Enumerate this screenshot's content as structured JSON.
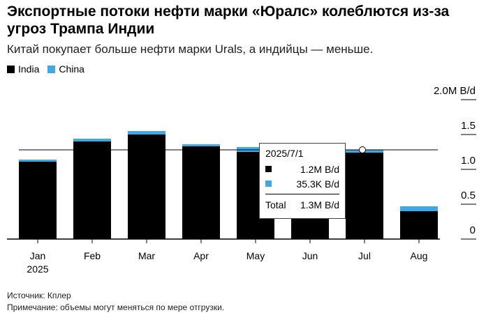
{
  "title": "Экспортные потоки нефти марки «Юралс» колеблются из-за угроз Трампа Индии",
  "subtitle": "Китай покупает больше нефти марки Urals, а индийцы — меньше.",
  "footer": {
    "source": "Источник: Кплер",
    "note": "Примечание: объемы могут меняться по мере отгрузки."
  },
  "colors": {
    "India": "#000000",
    "China": "#3fa9e6"
  },
  "tooltip": {
    "date": "2025/7/1",
    "india": "1.2M B/d",
    "china": "35.3K B/d",
    "total_label": "Total",
    "total": "1.3M B/d"
  },
  "chart_data": {
    "type": "bar",
    "stacked": true,
    "categories": [
      "Jan",
      "Feb",
      "Mar",
      "Apr",
      "May",
      "Jun",
      "Jul",
      "Aug"
    ],
    "year_label": "2025",
    "series": [
      {
        "name": "India",
        "values": [
          1.11,
          1.4,
          1.5,
          1.33,
          1.25,
          1.25,
          1.24,
          0.4
        ]
      },
      {
        "name": "China",
        "values": [
          0.03,
          0.04,
          0.05,
          0.03,
          0.07,
          0.03,
          0.035,
          0.07
        ]
      }
    ],
    "ylim": [
      0,
      2.0
    ],
    "yticks": [
      {
        "v": 0,
        "label": "0"
      },
      {
        "v": 0.5,
        "label": "0.5"
      },
      {
        "v": 1.0,
        "label": "1.0"
      },
      {
        "v": 1.5,
        "label": "1.5"
      },
      {
        "v": 2.0,
        "label": "2.0M B/d"
      }
    ],
    "reference_line": 1.28,
    "legend": "top-left"
  }
}
